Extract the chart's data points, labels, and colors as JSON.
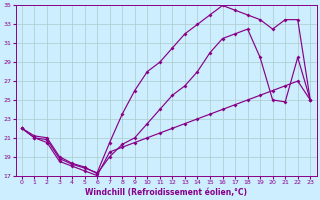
{
  "xlabel": "Windchill (Refroidissement éolien,°C)",
  "bg_color": "#cceeff",
  "line_color": "#880088",
  "grid_color": "#aacccc",
  "xlim": [
    -0.5,
    23.5
  ],
  "ylim": [
    17,
    35
  ],
  "xticks": [
    0,
    1,
    2,
    3,
    4,
    5,
    6,
    7,
    8,
    9,
    10,
    11,
    12,
    13,
    14,
    15,
    16,
    17,
    18,
    19,
    20,
    21,
    22,
    23
  ],
  "yticks": [
    17,
    19,
    21,
    23,
    25,
    27,
    29,
    31,
    33,
    35
  ],
  "line1_x": [
    0,
    1,
    2,
    3,
    4,
    5,
    6,
    7,
    8,
    9,
    10,
    11,
    12,
    13,
    14,
    15,
    16,
    17,
    18,
    19,
    20,
    21,
    22,
    23
  ],
  "line1_y": [
    22.0,
    21.0,
    20.5,
    18.5,
    18.0,
    17.5,
    17.0,
    19.5,
    20.0,
    20.5,
    21.0,
    21.5,
    22.0,
    22.5,
    23.0,
    23.5,
    24.0,
    24.5,
    25.0,
    25.5,
    26.0,
    26.5,
    27.0,
    25.0
  ],
  "line2_x": [
    0,
    1,
    2,
    3,
    4,
    5,
    6,
    7,
    8,
    9,
    10,
    11,
    12,
    13,
    14,
    15,
    16,
    17,
    18,
    19,
    20,
    21,
    22,
    23
  ],
  "line2_y": [
    22.0,
    21.0,
    20.8,
    18.8,
    18.2,
    17.8,
    17.3,
    20.5,
    23.5,
    26.0,
    28.0,
    29.0,
    30.5,
    32.0,
    33.0,
    34.0,
    35.0,
    34.5,
    34.0,
    33.5,
    32.5,
    33.5,
    33.5,
    25.0
  ],
  "line3_x": [
    0,
    1,
    2,
    3,
    4,
    5,
    6,
    7,
    8,
    9,
    10,
    11,
    12,
    13,
    14,
    15,
    16,
    17,
    18,
    19,
    20,
    21,
    22,
    23
  ],
  "line3_y": [
    22.0,
    21.2,
    21.0,
    19.0,
    18.3,
    17.9,
    17.2,
    19.0,
    20.3,
    21.0,
    22.5,
    24.0,
    25.5,
    26.5,
    28.0,
    30.0,
    31.5,
    32.0,
    32.5,
    29.5,
    25.0,
    24.8,
    29.5,
    25.0
  ]
}
